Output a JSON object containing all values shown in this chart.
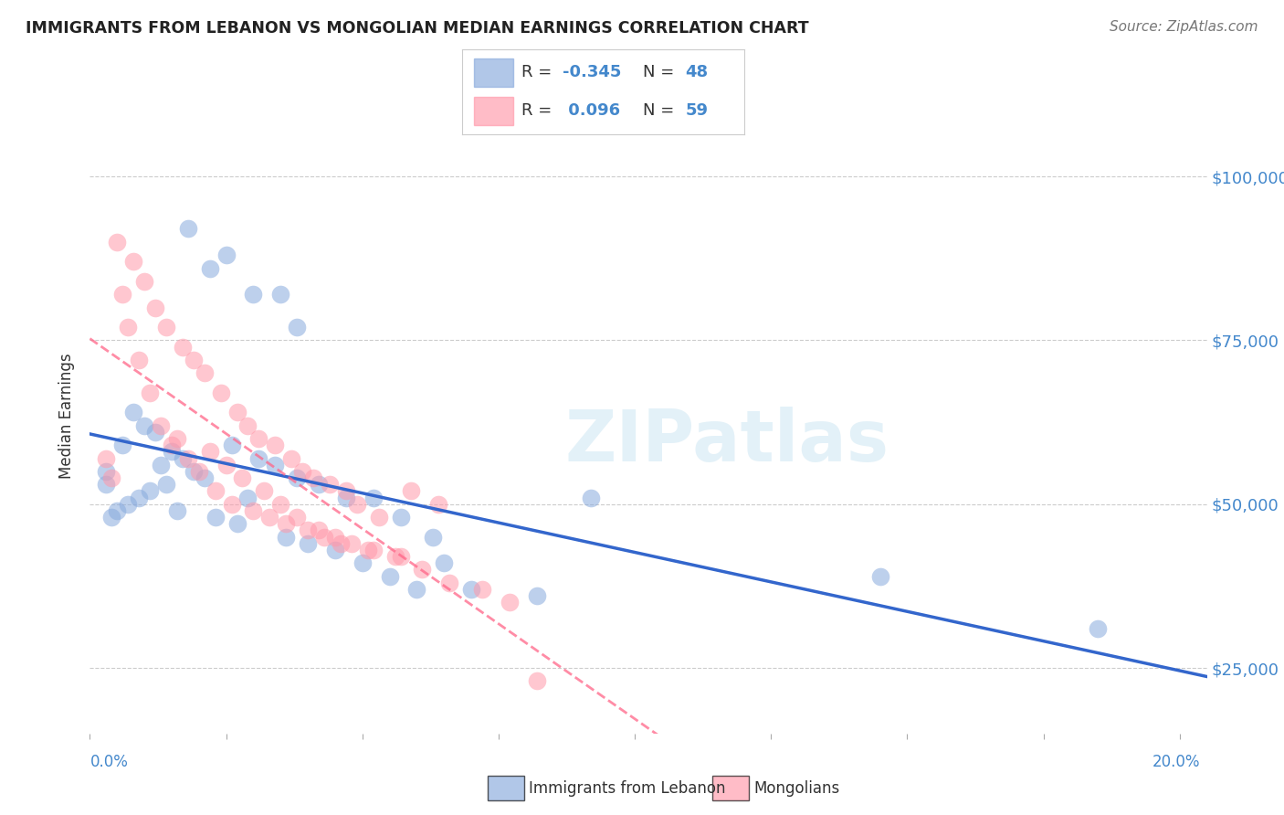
{
  "title": "IMMIGRANTS FROM LEBANON VS MONGOLIAN MEDIAN EARNINGS CORRELATION CHART",
  "source": "Source: ZipAtlas.com",
  "ylabel": "Median Earnings",
  "ytick_labels": [
    "$25,000",
    "$50,000",
    "$75,000",
    "$100,000"
  ],
  "ytick_values": [
    25000,
    50000,
    75000,
    100000
  ],
  "watermark": "ZIPatlas",
  "xlim": [
    0.0,
    0.205
  ],
  "ylim": [
    15000,
    112000
  ],
  "blue_color": "#88AADD",
  "pink_color": "#FF99AA",
  "trendline_blue": "#3366CC",
  "trendline_pink": "#FF6688",
  "bg_color": "#FFFFFF",
  "grid_color": "#CCCCCC",
  "blue_scatter_x": [
    0.018,
    0.022,
    0.025,
    0.03,
    0.035,
    0.038,
    0.008,
    0.01,
    0.012,
    0.006,
    0.013,
    0.015,
    0.017,
    0.019,
    0.021,
    0.014,
    0.011,
    0.009,
    0.007,
    0.005,
    0.026,
    0.031,
    0.034,
    0.038,
    0.042,
    0.047,
    0.052,
    0.057,
    0.063,
    0.004,
    0.016,
    0.023,
    0.027,
    0.029,
    0.036,
    0.04,
    0.045,
    0.05,
    0.055,
    0.06,
    0.003,
    0.003,
    0.065,
    0.07,
    0.082,
    0.092,
    0.145,
    0.185
  ],
  "blue_scatter_y": [
    92000,
    86000,
    88000,
    82000,
    82000,
    77000,
    64000,
    62000,
    61000,
    59000,
    56000,
    58000,
    57000,
    55000,
    54000,
    53000,
    52000,
    51000,
    50000,
    49000,
    59000,
    57000,
    56000,
    54000,
    53000,
    51000,
    51000,
    48000,
    45000,
    48000,
    49000,
    48000,
    47000,
    51000,
    45000,
    44000,
    43000,
    41000,
    39000,
    37000,
    55000,
    53000,
    41000,
    37000,
    36000,
    51000,
    39000,
    31000
  ],
  "pink_scatter_x": [
    0.005,
    0.008,
    0.01,
    0.012,
    0.014,
    0.017,
    0.019,
    0.021,
    0.024,
    0.027,
    0.029,
    0.031,
    0.034,
    0.037,
    0.039,
    0.041,
    0.044,
    0.047,
    0.049,
    0.053,
    0.006,
    0.007,
    0.009,
    0.011,
    0.013,
    0.015,
    0.018,
    0.02,
    0.023,
    0.026,
    0.03,
    0.033,
    0.036,
    0.04,
    0.043,
    0.046,
    0.051,
    0.056,
    0.059,
    0.064,
    0.003,
    0.004,
    0.016,
    0.022,
    0.025,
    0.028,
    0.032,
    0.035,
    0.038,
    0.042,
    0.045,
    0.048,
    0.052,
    0.057,
    0.061,
    0.066,
    0.072,
    0.077,
    0.082
  ],
  "pink_scatter_y": [
    90000,
    87000,
    84000,
    80000,
    77000,
    74000,
    72000,
    70000,
    67000,
    64000,
    62000,
    60000,
    59000,
    57000,
    55000,
    54000,
    53000,
    52000,
    50000,
    48000,
    82000,
    77000,
    72000,
    67000,
    62000,
    59000,
    57000,
    55000,
    52000,
    50000,
    49000,
    48000,
    47000,
    46000,
    45000,
    44000,
    43000,
    42000,
    52000,
    50000,
    57000,
    54000,
    60000,
    58000,
    56000,
    54000,
    52000,
    50000,
    48000,
    46000,
    45000,
    44000,
    43000,
    42000,
    40000,
    38000,
    37000,
    35000,
    23000
  ]
}
